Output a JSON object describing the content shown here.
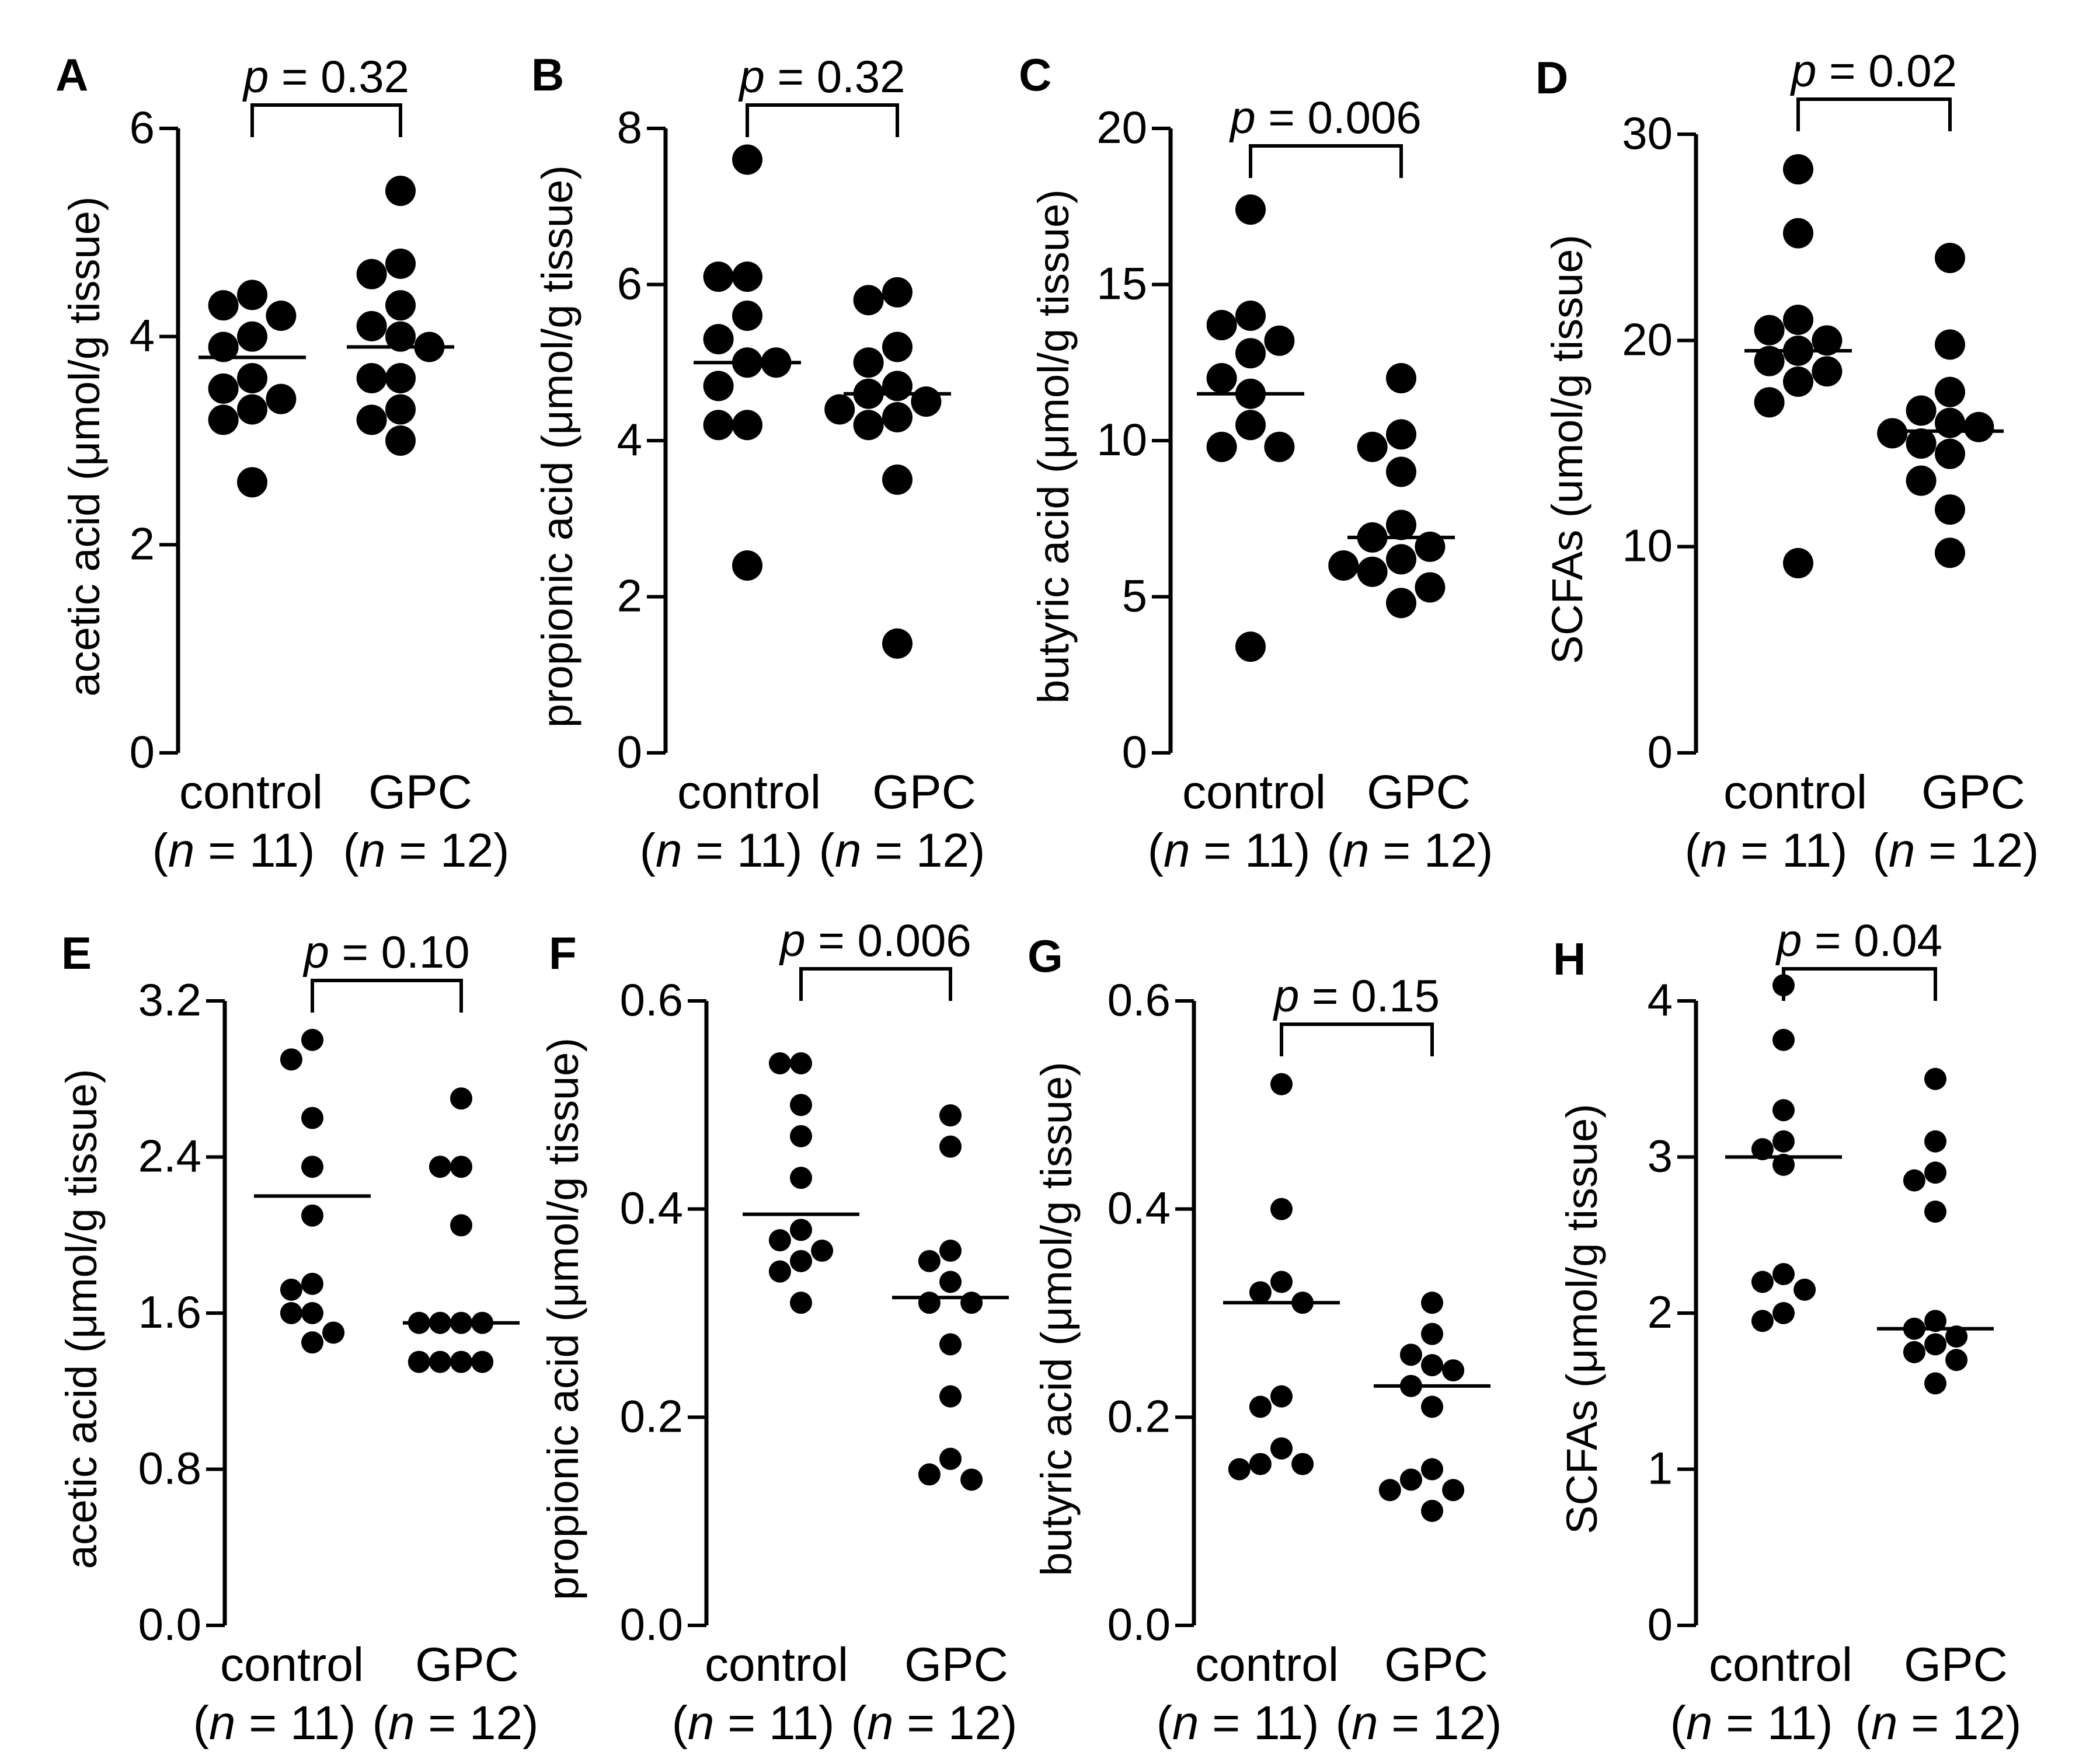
{
  "figure": {
    "groups": [
      "control",
      "GPC"
    ],
    "n_labels": [
      [
        "(",
        "n",
        " = 11)"
      ],
      [
        "(",
        "n",
        " = 12)"
      ]
    ]
  },
  "chart_data": [
    {
      "type": "scatter",
      "panel": "A",
      "ylabel": "acetic acid (μmol/g tissue)",
      "ylim": [
        0,
        6
      ],
      "yticks": [
        0,
        2,
        4,
        6
      ],
      "tick_labels": [
        "0",
        "2",
        "4",
        "6"
      ],
      "p_label": "p",
      "p_value": "= 0.32",
      "series": [
        {
          "name": "control",
          "n": 11,
          "mean": 3.8,
          "values": [
            4.4,
            4.3,
            4.2,
            4.0,
            3.9,
            3.6,
            3.5,
            3.4,
            3.3,
            3.2,
            2.6
          ]
        },
        {
          "name": "GPC",
          "n": 12,
          "mean": 3.9,
          "values": [
            5.4,
            4.7,
            4.6,
            4.3,
            4.1,
            4.0,
            3.9,
            3.6,
            3.6,
            3.3,
            3.2,
            3.0
          ]
        }
      ]
    },
    {
      "type": "scatter",
      "panel": "B",
      "ylabel": "propionic acid (μmol/g tissue)",
      "ylim": [
        0,
        8
      ],
      "yticks": [
        0,
        2,
        4,
        6,
        8
      ],
      "tick_labels": [
        "0",
        "2",
        "4",
        "6",
        "8"
      ],
      "p_label": "p",
      "p_value": "= 0.32",
      "series": [
        {
          "name": "control",
          "n": 11,
          "mean": 5.0,
          "values": [
            7.6,
            6.1,
            6.1,
            5.6,
            5.3,
            5.0,
            5.0,
            4.7,
            4.2,
            4.2,
            2.4
          ]
        },
        {
          "name": "GPC",
          "n": 12,
          "mean": 4.6,
          "values": [
            5.9,
            5.8,
            5.2,
            5.0,
            4.7,
            4.6,
            4.5,
            4.4,
            4.3,
            4.2,
            3.5,
            1.4
          ]
        }
      ]
    },
    {
      "type": "scatter",
      "panel": "C",
      "ylabel": "butyric acid (μmol/g tissue)",
      "ylim": [
        0,
        20
      ],
      "yticks": [
        0,
        5,
        10,
        15,
        20
      ],
      "tick_labels": [
        "0",
        "5",
        "10",
        "15",
        "20"
      ],
      "p_label": "p",
      "p_value": "= 0.006",
      "series": [
        {
          "name": "control",
          "n": 11,
          "mean": 11.5,
          "values": [
            17.4,
            14.0,
            13.7,
            13.2,
            12.8,
            12.0,
            11.5,
            10.5,
            9.8,
            9.8,
            3.4
          ]
        },
        {
          "name": "GPC",
          "n": 12,
          "mean": 6.9,
          "values": [
            12.0,
            10.2,
            9.8,
            9.0,
            7.3,
            6.9,
            6.6,
            6.2,
            6.0,
            5.8,
            5.3,
            4.8
          ]
        }
      ]
    },
    {
      "type": "scatter",
      "panel": "D",
      "ylabel": "SCFAs (umol/g tissue)",
      "ylim": [
        0,
        30
      ],
      "yticks": [
        0,
        10,
        20,
        30
      ],
      "tick_labels": [
        "0",
        "10",
        "20",
        "30"
      ],
      "p_label": "p",
      "p_value": "= 0.02",
      "series": [
        {
          "name": "control",
          "n": 11,
          "mean": 19.5,
          "values": [
            28.3,
            25.2,
            21.0,
            20.5,
            20.0,
            19.5,
            19.0,
            18.5,
            18.0,
            17.0,
            9.2
          ]
        },
        {
          "name": "GPC",
          "n": 12,
          "mean": 15.6,
          "values": [
            24.0,
            19.8,
            17.5,
            16.6,
            16.0,
            15.8,
            15.5,
            15.0,
            14.5,
            13.2,
            11.8,
            9.7
          ]
        }
      ]
    },
    {
      "type": "scatter",
      "panel": "E",
      "ylabel": "acetic acid (μmol/g tissue)",
      "ylim": [
        0,
        3.2
      ],
      "yticks": [
        0,
        0.8,
        1.6,
        2.4,
        3.2
      ],
      "tick_labels": [
        "0.0",
        "0.8",
        "1.6",
        "2.4",
        "3.2"
      ],
      "p_label": "p",
      "p_value": "= 0.10",
      "series": [
        {
          "name": "control",
          "n": 11,
          "mean": 2.2,
          "values": [
            3.0,
            2.9,
            2.6,
            2.35,
            2.1,
            1.75,
            1.72,
            1.6,
            1.6,
            1.5,
            1.45
          ]
        },
        {
          "name": "GPC",
          "n": 12,
          "mean": 1.55,
          "values": [
            2.7,
            2.35,
            2.35,
            2.05,
            1.55,
            1.55,
            1.55,
            1.55,
            1.35,
            1.35,
            1.35,
            1.35
          ]
        }
      ]
    },
    {
      "type": "scatter",
      "panel": "F",
      "ylabel": "propionic acid (μmol/g tissue)",
      "ylim": [
        0,
        0.6
      ],
      "yticks": [
        0,
        0.2,
        0.4,
        0.6
      ],
      "tick_labels": [
        "0.0",
        "0.2",
        "0.4",
        "0.6"
      ],
      "p_label": "p",
      "p_value": "= 0.006",
      "series": [
        {
          "name": "control",
          "n": 11,
          "mean": 0.395,
          "values": [
            0.54,
            0.54,
            0.5,
            0.47,
            0.43,
            0.38,
            0.37,
            0.36,
            0.35,
            0.34,
            0.31
          ]
        },
        {
          "name": "GPC",
          "n": 12,
          "mean": 0.315,
          "values": [
            0.49,
            0.46,
            0.36,
            0.35,
            0.33,
            0.31,
            0.31,
            0.27,
            0.22,
            0.16,
            0.145,
            0.14
          ]
        }
      ]
    },
    {
      "type": "scatter",
      "panel": "G",
      "ylabel": "butyric acid (μmol/g tissue)",
      "ylim": [
        0,
        0.6
      ],
      "yticks": [
        0,
        0.2,
        0.4,
        0.6
      ],
      "tick_labels": [
        "0.0",
        "0.2",
        "0.4",
        "0.6"
      ],
      "p_label": "p",
      "p_value": "= 0.15",
      "series": [
        {
          "name": "control",
          "n": 11,
          "mean": 0.31,
          "values": [
            0.52,
            0.4,
            0.33,
            0.32,
            0.31,
            0.22,
            0.21,
            0.17,
            0.155,
            0.155,
            0.15
          ]
        },
        {
          "name": "GPC",
          "n": 12,
          "mean": 0.23,
          "values": [
            0.31,
            0.28,
            0.26,
            0.25,
            0.245,
            0.23,
            0.21,
            0.15,
            0.14,
            0.13,
            0.13,
            0.11
          ]
        }
      ]
    },
    {
      "type": "scatter",
      "panel": "H",
      "ylabel": "SCFAs (μmol/g tissue)",
      "ylim": [
        0,
        4.2
      ],
      "yticks": [
        0,
        1,
        2,
        3,
        4
      ],
      "tick_labels": [
        "0",
        "1",
        "2",
        "3",
        "4"
      ],
      "p_label": "p",
      "p_value": "= 0.04",
      "series": [
        {
          "name": "control",
          "n": 11,
          "mean": 3.0,
          "values": [
            4.1,
            3.75,
            3.3,
            3.1,
            3.05,
            2.95,
            2.25,
            2.2,
            2.15,
            2.0,
            1.95
          ]
        },
        {
          "name": "GPC",
          "n": 12,
          "mean": 1.9,
          "values": [
            3.5,
            3.1,
            2.9,
            2.85,
            2.65,
            1.95,
            1.9,
            1.85,
            1.8,
            1.75,
            1.7,
            1.55
          ]
        }
      ]
    }
  ]
}
